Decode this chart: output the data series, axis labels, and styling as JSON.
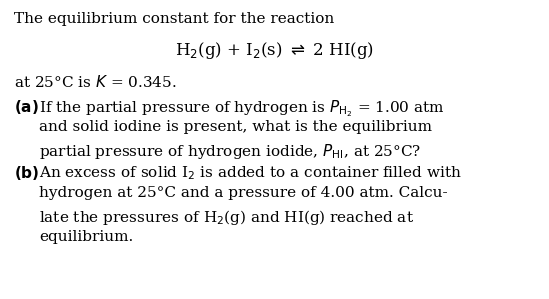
{
  "background_color": "#ffffff",
  "figsize": [
    5.49,
    2.99
  ],
  "dpi": 100,
  "font_size_main": 11.0,
  "font_size_eq": 12.0,
  "line1": "The equilibrium constant for the reaction",
  "line3": "at 25°C is $\\it{K}$ = 0.345.",
  "part_a_label": "(a)",
  "part_a_l1": "If the partial pressure of hydrogen is $\\it{P}_{\\mathrm{H_2}}$ = 1.00 atm",
  "part_a_l2": "and solid iodine is present, what is the equilibrium",
  "part_a_l3": "partial pressure of hydrogen iodide, $\\it{P}_{\\mathrm{HI}}$, at 25°C?",
  "part_b_label": "(b)",
  "part_b_l1": "An excess of solid I$_2$ is added to a container filled with",
  "part_b_l2": "hydrogen at 25°C and a pressure of 4.00 atm. Calcu-",
  "part_b_l3": "late the pressures of H$_2$(g) and HI(g) reached at",
  "part_b_l4": "equilibrium.",
  "eq_text": "H$_2$(g) + I$_2$(s) $\\rightleftharpoons$ 2 HI(g)"
}
